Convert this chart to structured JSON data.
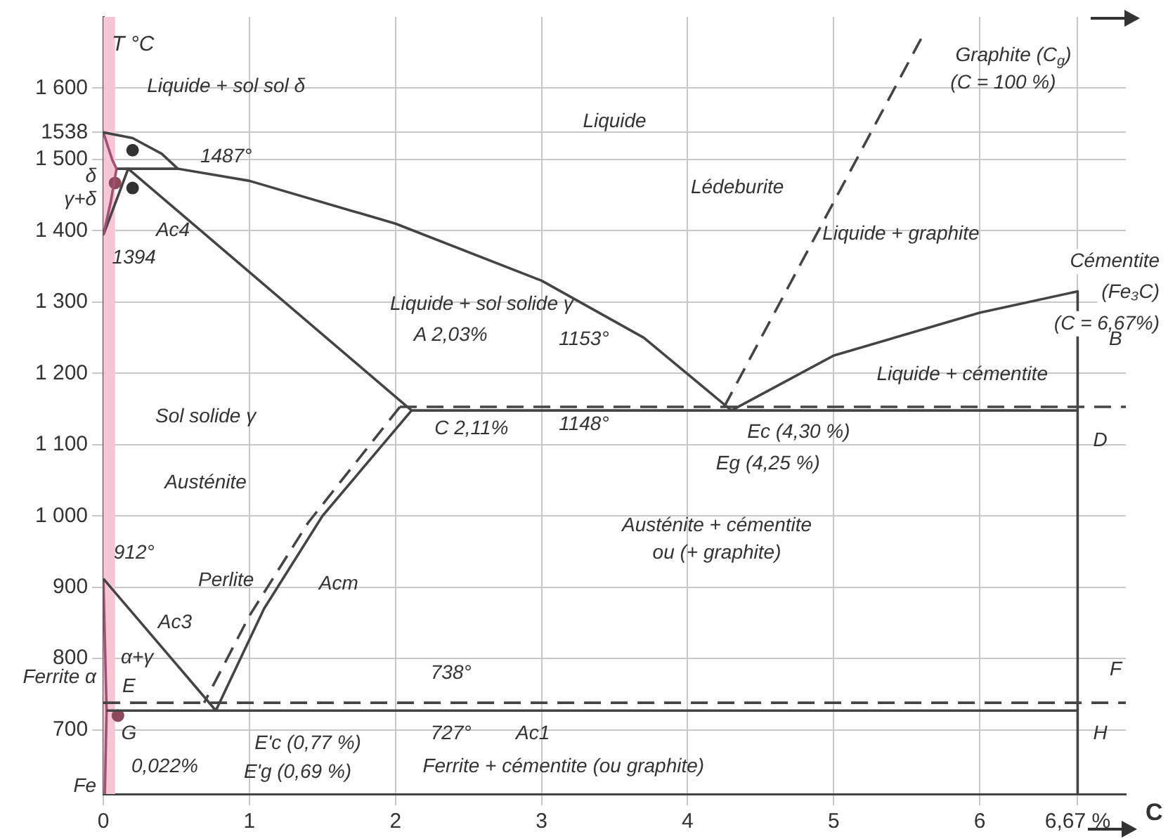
{
  "chart_data": {
    "type": "line",
    "xlabel": "C",
    "ylabel": "T °C",
    "xlim": [
      0,
      7
    ],
    "ylim": [
      610,
      1700
    ],
    "xticks": [
      0,
      1,
      2,
      3,
      4,
      5,
      6,
      {
        "value": 6.67,
        "label": "6,67 %"
      }
    ],
    "yticks": [
      700,
      800,
      900,
      {
        "value": 1000,
        "label": "1 000"
      },
      {
        "value": 1100,
        "label": "1 100"
      },
      {
        "value": 1200,
        "label": "1 200"
      },
      {
        "value": 1300,
        "label": "1 300"
      },
      {
        "value": 1400,
        "label": "1 400"
      },
      {
        "value": 1500,
        "label": "1 500"
      },
      {
        "value": 1538,
        "label": "1538"
      },
      {
        "value": 1600,
        "label": "1 600"
      }
    ],
    "grid": true,
    "legend": false,
    "marker": "none",
    "bands": [
      {
        "axis": "x",
        "from": 0,
        "to": 0.08,
        "color": "#f7c6d4"
      }
    ],
    "series": [
      {
        "color": "#444444",
        "x": [
          0,
          0.2,
          0.4,
          0.51,
          1,
          2,
          3,
          3.7,
          4.3
        ],
        "values": [
          1538,
          1530,
          1508,
          1487,
          1470,
          1410,
          1330,
          1250,
          1148
        ]
      },
      {
        "color": "#444444",
        "x": [
          4.3,
          5,
          6,
          6.67,
          6.67
        ],
        "values": [
          1148,
          1225,
          1285,
          1315,
          610
        ]
      },
      {
        "color": "#444444",
        "line_style": "dashed",
        "x": [
          4.25,
          5.6
        ],
        "values": [
          1153,
          1670
        ]
      },
      {
        "color": "#a05070",
        "x": [
          0,
          0.06,
          0.09
        ],
        "values": [
          1538,
          1500,
          1487
        ]
      },
      {
        "color": "#a05070",
        "x": [
          0,
          0.05,
          0.09
        ],
        "values": [
          1394,
          1440,
          1487
        ]
      },
      {
        "color": "#444444",
        "x": [
          0.09,
          0.51
        ],
        "values": [
          1487,
          1487
        ]
      },
      {
        "color": "#444444",
        "x": [
          0,
          0.17,
          2.11
        ],
        "values": [
          1394,
          1487,
          1148
        ]
      },
      {
        "color": "#444444",
        "x": [
          0.77,
          1.1,
          1.5,
          2.11,
          6.67
        ],
        "values": [
          727,
          870,
          1000,
          1148,
          1148
        ]
      },
      {
        "color": "#444444",
        "line_style": "dashed",
        "x": [
          2.03,
          7
        ],
        "values": [
          1153,
          1153
        ]
      },
      {
        "color": "#444444",
        "line_style": "dashed",
        "x": [
          2.03,
          1.4,
          1.0,
          0.69
        ],
        "values": [
          1153,
          990,
          860,
          738
        ]
      },
      {
        "color": "#444444",
        "x": [
          0,
          0.3,
          0.55,
          0.77
        ],
        "values": [
          912,
          840,
          780,
          727
        ]
      },
      {
        "color": "#444444",
        "x": [
          0.022,
          6.67
        ],
        "values": [
          727,
          727
        ]
      },
      {
        "color": "#444444",
        "line_style": "dashed",
        "x": [
          0,
          7
        ],
        "values": [
          738,
          738
        ]
      },
      {
        "color": "#a05070",
        "x": [
          0,
          0.022,
          0.01
        ],
        "values": [
          912,
          727,
          610
        ]
      },
      {
        "type": "scatter",
        "marker": "circle",
        "color": "#333333",
        "x": [
          0.2,
          0.2
        ],
        "values": [
          1513,
          1460
        ]
      },
      {
        "type": "scatter",
        "marker": "circle",
        "color": "#8c4a5c",
        "x": [
          0.08,
          0.1
        ],
        "values": [
          1467,
          720
        ]
      }
    ],
    "annotations": [
      "Liquide + sol sol δ",
      "1487°",
      "δ",
      "γ+δ",
      "Ac4",
      "Liquide",
      "Graphite (C$_{g}$)",
      "(C = 100 %)",
      "Lédeburite",
      "Liquide + graphite",
      "Cémentite",
      "(Fe₃C)",
      "(C = 6,67%)",
      "Liquide + sol solide γ",
      "A 2,03%",
      "1153°",
      "Liquide + cémentite",
      "B",
      "Sol solide γ",
      "C 2,11%",
      "1148°",
      "Ec (4,30 %)",
      "D",
      "Eg (4,25 %)",
      "Austénite",
      "Austénite + cémentite",
      "ou (+ graphite)",
      "912°",
      "Perlite",
      "Acm",
      "Ac3",
      "α+γ",
      "Ferrite α",
      "E",
      "738°",
      "F",
      "G",
      "727°",
      "Ac1",
      "H",
      "E'c (0,77 %)",
      "0,022%",
      "E'g (0,69 %)",
      "Ferrite + cémentite (ou graphite)",
      "Fe",
      "1394"
    ]
  }
}
